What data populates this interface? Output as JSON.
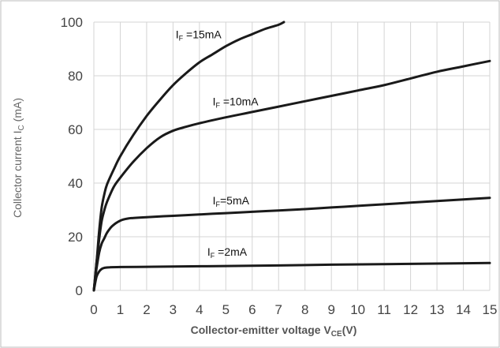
{
  "chart_data": {
    "type": "line",
    "ylabel": "Collector current I",
    "ylabel_sub": "C",
    "ylabel_unit": "(mA)",
    "xlabel": "Collector-emitter voltage V",
    "xlabel_sub": "CE",
    "xlabel_unit": "(V)",
    "xlim": [
      0,
      15
    ],
    "ylim": [
      0,
      100
    ],
    "xticks": [
      "0",
      "1",
      "2",
      "3",
      "4",
      "5",
      "6",
      "7",
      "8",
      "9",
      "10",
      "11",
      "12",
      "13",
      "14",
      "15"
    ],
    "yticks": [
      "0",
      "20",
      "40",
      "60",
      "80",
      "100"
    ],
    "grid": true,
    "border_color": "#bdbdbd",
    "line_color": "#1a1a1a",
    "series": [
      {
        "name": "IF=15mA",
        "label_prefix": "I",
        "label_sub": "F",
        "label_rest": " =15mA",
        "points": [
          [
            0,
            0
          ],
          [
            0.1,
            10
          ],
          [
            0.2,
            22
          ],
          [
            0.3,
            31
          ],
          [
            0.4,
            36
          ],
          [
            0.5,
            39.5
          ],
          [
            0.75,
            45
          ],
          [
            1,
            50
          ],
          [
            1.5,
            58
          ],
          [
            2,
            65
          ],
          [
            2.5,
            71
          ],
          [
            3,
            76.5
          ],
          [
            3.5,
            81
          ],
          [
            4,
            85
          ],
          [
            4.5,
            88
          ],
          [
            5,
            91
          ],
          [
            5.5,
            93.5
          ],
          [
            6,
            95.5
          ],
          [
            6.5,
            97.5
          ],
          [
            7,
            99
          ],
          [
            7.2,
            100
          ]
        ]
      },
      {
        "name": "IF=10mA",
        "label_prefix": "I",
        "label_sub": "F",
        "label_rest": " =10mA",
        "points": [
          [
            0,
            0
          ],
          [
            0.1,
            10
          ],
          [
            0.2,
            19
          ],
          [
            0.3,
            26
          ],
          [
            0.4,
            30
          ],
          [
            0.5,
            33
          ],
          [
            0.75,
            38.5
          ],
          [
            1,
            42
          ],
          [
            1.5,
            48
          ],
          [
            2,
            53
          ],
          [
            2.5,
            57
          ],
          [
            3,
            59.5
          ],
          [
            3.5,
            61
          ],
          [
            4,
            62.3
          ],
          [
            5,
            64.5
          ],
          [
            6,
            66.5
          ],
          [
            7,
            68.5
          ],
          [
            8,
            70.5
          ],
          [
            9,
            72.5
          ],
          [
            10,
            74.5
          ],
          [
            11,
            76.5
          ],
          [
            12,
            79
          ],
          [
            13,
            81.5
          ],
          [
            14,
            83.5
          ],
          [
            15,
            85.5
          ]
        ]
      },
      {
        "name": "IF=5mA",
        "label_prefix": "I",
        "label_sub": "F",
        "label_rest": "=5mA",
        "points": [
          [
            0,
            0
          ],
          [
            0.1,
            8
          ],
          [
            0.2,
            14
          ],
          [
            0.3,
            17.5
          ],
          [
            0.4,
            19.5
          ],
          [
            0.5,
            21.5
          ],
          [
            0.7,
            24
          ],
          [
            1,
            26
          ],
          [
            1.3,
            26.8
          ],
          [
            1.5,
            27
          ],
          [
            2,
            27.3
          ],
          [
            3,
            27.8
          ],
          [
            4,
            28.3
          ],
          [
            5,
            28.8
          ],
          [
            6,
            29.3
          ],
          [
            7,
            29.8
          ],
          [
            8,
            30.3
          ],
          [
            9,
            30.9
          ],
          [
            10,
            31.5
          ],
          [
            11,
            32.1
          ],
          [
            12,
            32.7
          ],
          [
            13,
            33.3
          ],
          [
            14,
            33.9
          ],
          [
            15,
            34.5
          ]
        ]
      },
      {
        "name": "IF=2mA",
        "label_prefix": "I",
        "label_sub": "F",
        "label_rest": " =2mA",
        "points": [
          [
            0,
            0
          ],
          [
            0.1,
            5
          ],
          [
            0.2,
            7
          ],
          [
            0.3,
            8
          ],
          [
            0.4,
            8.4
          ],
          [
            0.6,
            8.6
          ],
          [
            1,
            8.7
          ],
          [
            2,
            8.8
          ],
          [
            3,
            8.9
          ],
          [
            5,
            9.1
          ],
          [
            7,
            9.3
          ],
          [
            9,
            9.6
          ],
          [
            11,
            9.8
          ],
          [
            13,
            10
          ],
          [
            15,
            10.2
          ]
        ]
      }
    ],
    "label_anchors": [
      [
        3.1,
        94
      ],
      [
        4.5,
        69
      ],
      [
        4.5,
        32
      ],
      [
        4.3,
        13
      ]
    ]
  }
}
